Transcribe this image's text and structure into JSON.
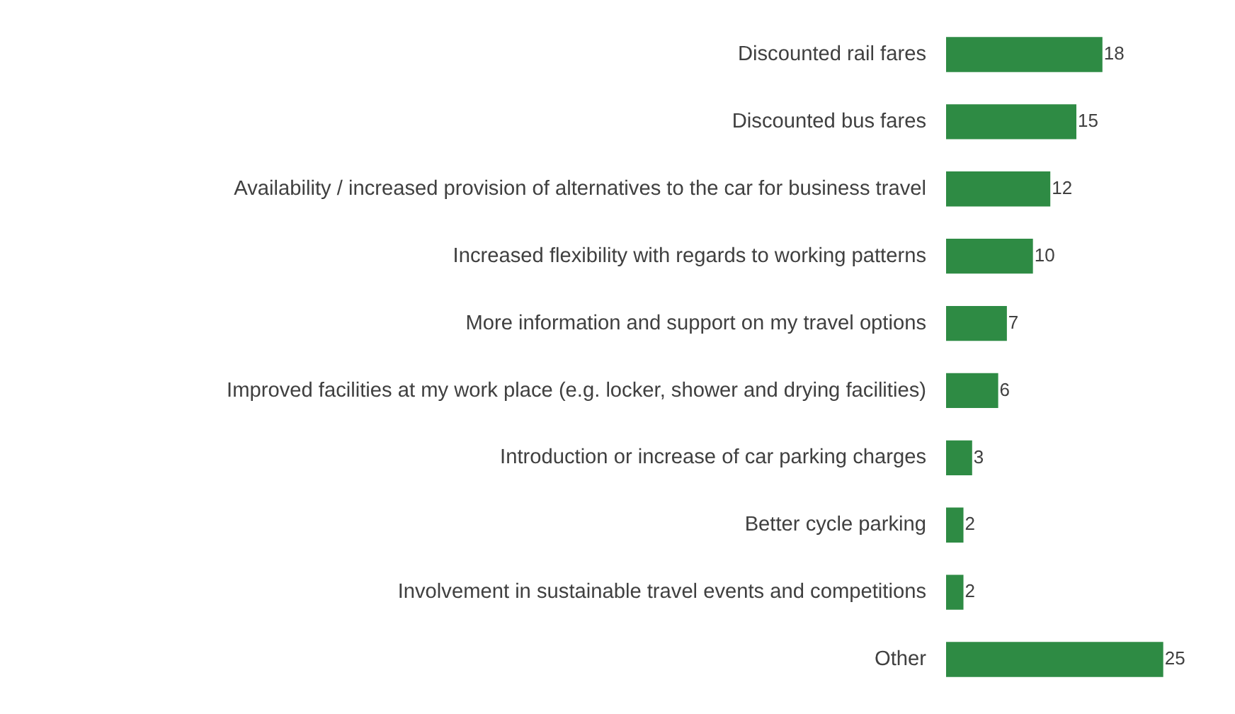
{
  "chart_data": {
    "type": "bar",
    "orientation": "horizontal",
    "data_labels": true,
    "categories": [
      "Discounted rail fares",
      "Discounted bus fares",
      "Availability / increased provision of alternatives to the car for business travel",
      "Increased flexibility with regards to working patterns",
      "More information and support on my travel options",
      "Improved facilities at my work place (e.g. locker, shower and drying facilities)",
      "Introduction or increase of car parking charges",
      "Better cycle parking",
      "Involvement in sustainable travel events and competitions",
      "Other"
    ],
    "values": [
      18,
      15,
      12,
      10,
      7,
      6,
      3,
      2,
      2,
      25
    ],
    "color": "#2e8b44"
  }
}
